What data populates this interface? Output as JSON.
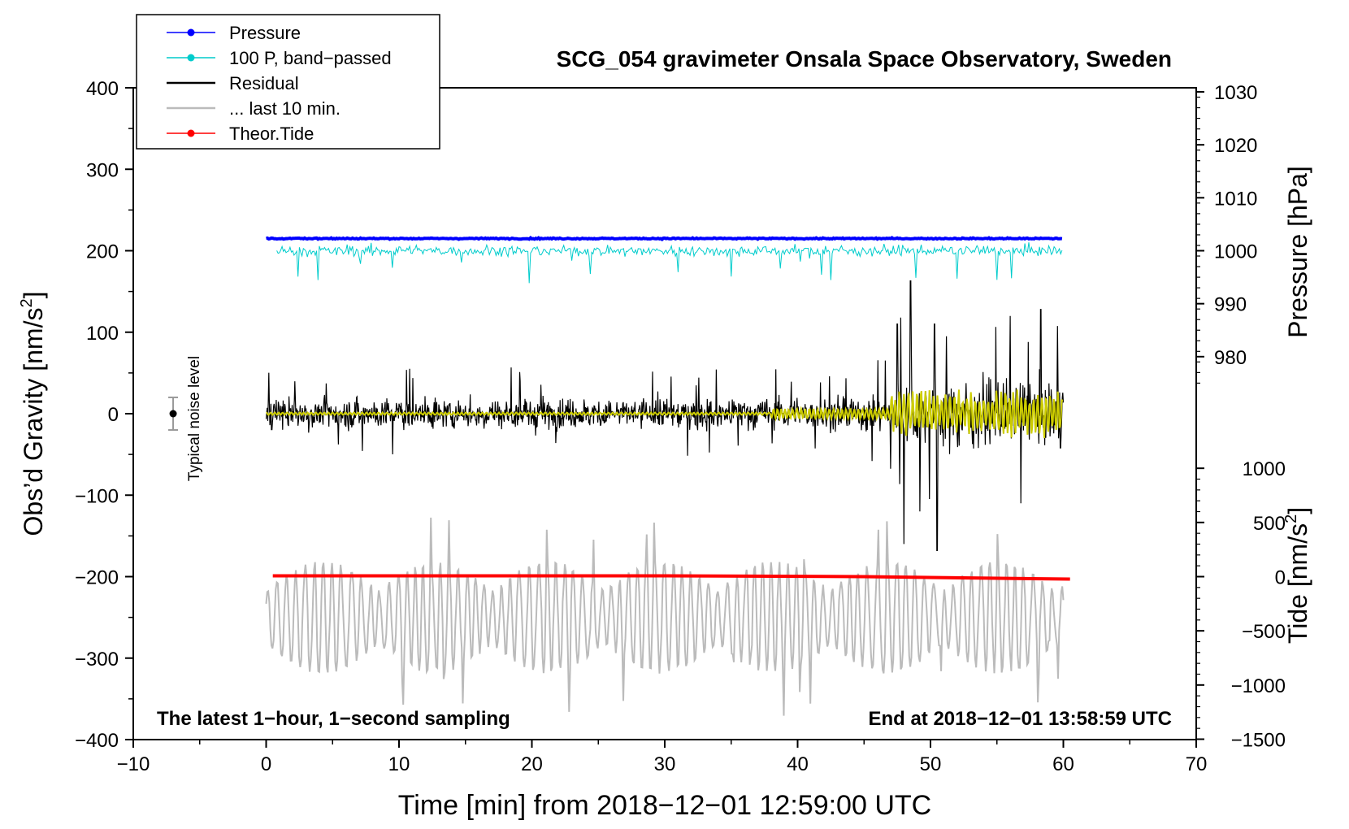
{
  "chart_data": {
    "type": "line",
    "title": "SCG_054 gravimeter Onsala Space Observatory, Sweden",
    "xlabel": "Time [min] from 2018−12−01 12:59:00 UTC",
    "ylabel_left_main": "Obs’d Gravity [nm/s",
    "ylabel_left_sup": "2",
    "ylabel_left_close": "]",
    "ylabel_right_pressure": "Pressure [hPa]",
    "ylabel_right_tide_main": "Tide [nm/s",
    "ylabel_right_tide_sup": "2",
    "ylabel_right_tide_close": "]",
    "xlim": [
      -10,
      70
    ],
    "ylim": [
      -400,
      400
    ],
    "x_ticks": [
      "−10",
      "0",
      "10",
      "20",
      "30",
      "40",
      "50",
      "60",
      "70"
    ],
    "x_tick_values": [
      -10,
      0,
      10,
      20,
      30,
      40,
      50,
      60,
      70
    ],
    "y_ticks": [
      "400",
      "300",
      "200",
      "100",
      "0",
      "−100",
      "−200",
      "−300",
      "−400"
    ],
    "y_tick_values": [
      400,
      300,
      200,
      100,
      0,
      -100,
      -200,
      -300,
      -400
    ],
    "pressure_ticks": [
      "1030",
      "1020",
      "1010",
      "1000",
      "990",
      "980"
    ],
    "pressure_tick_values": [
      1030,
      1020,
      1010,
      1000,
      990,
      980
    ],
    "pressure_to_gravity": {
      "p0": 1000,
      "g0": 200,
      "scale": 6.5
    },
    "tide_ticks": [
      "1000",
      "500",
      "0",
      "−500",
      "−1000",
      "−1500"
    ],
    "tide_tick_values": [
      1000,
      500,
      0,
      -500,
      -1000,
      -1500
    ],
    "tide_to_gravity": {
      "t0": 0,
      "g0": -200,
      "scale": 0.133
    },
    "legend_position": "top-left",
    "legend": [
      {
        "label": "Pressure",
        "color": "#0000ff",
        "marker": true
      },
      {
        "label": "100 P, band−passed",
        "color": "#00cccc",
        "marker": true
      },
      {
        "label": "Residual",
        "color": "#000000",
        "marker": false
      },
      {
        "label": "... last 10 min.",
        "color": "#bbbbbb",
        "marker": false
      },
      {
        "label": "Theor.Tide",
        "color": "#ff0000",
        "marker": true
      }
    ],
    "annotations": {
      "left_bottom": "The latest 1−hour, 1−second sampling",
      "right_bottom": "End at 2018−12−01 13:58:59 UTC",
      "noise_label": "Typical noise level"
    },
    "noise_bar": {
      "x": -7,
      "y": 0,
      "err": 20
    },
    "series": [
      {
        "name": "Pressure",
        "color": "#0000ff",
        "x_range": [
          0,
          60
        ],
        "y_gravity": 215,
        "noise": 0.6
      },
      {
        "name": "100 P, band−passed",
        "color": "#00cccc",
        "x_range": [
          0.8,
          60
        ],
        "y_gravity": 200,
        "noise_amp": 9,
        "spike_min": 170
      },
      {
        "name": "Residual",
        "color": "#000000",
        "x_range": [
          0,
          60
        ],
        "y_gravity": 0,
        "amp_0_47": 28,
        "amp_47_60": 60,
        "max_spike": 163,
        "min_spike": -168
      },
      {
        "name": "Residual filtered",
        "color": "#cccc00",
        "x_range": [
          0,
          60
        ],
        "y_gravity": 0,
        "amp_0_38": 1.5,
        "amp_38_47": 6,
        "amp_47_60": 22
      },
      {
        "name": "... last 10 min.",
        "color": "#bbbbbb",
        "x_range": [
          0,
          60
        ],
        "center_gravity": -250,
        "amp": 60
      },
      {
        "name": "Theor.Tide",
        "color": "#ff0000",
        "x": [
          0.5,
          30,
          45,
          60.5
        ],
        "y_gravity": [
          -199,
          -199,
          -200,
          -203
        ]
      }
    ]
  }
}
